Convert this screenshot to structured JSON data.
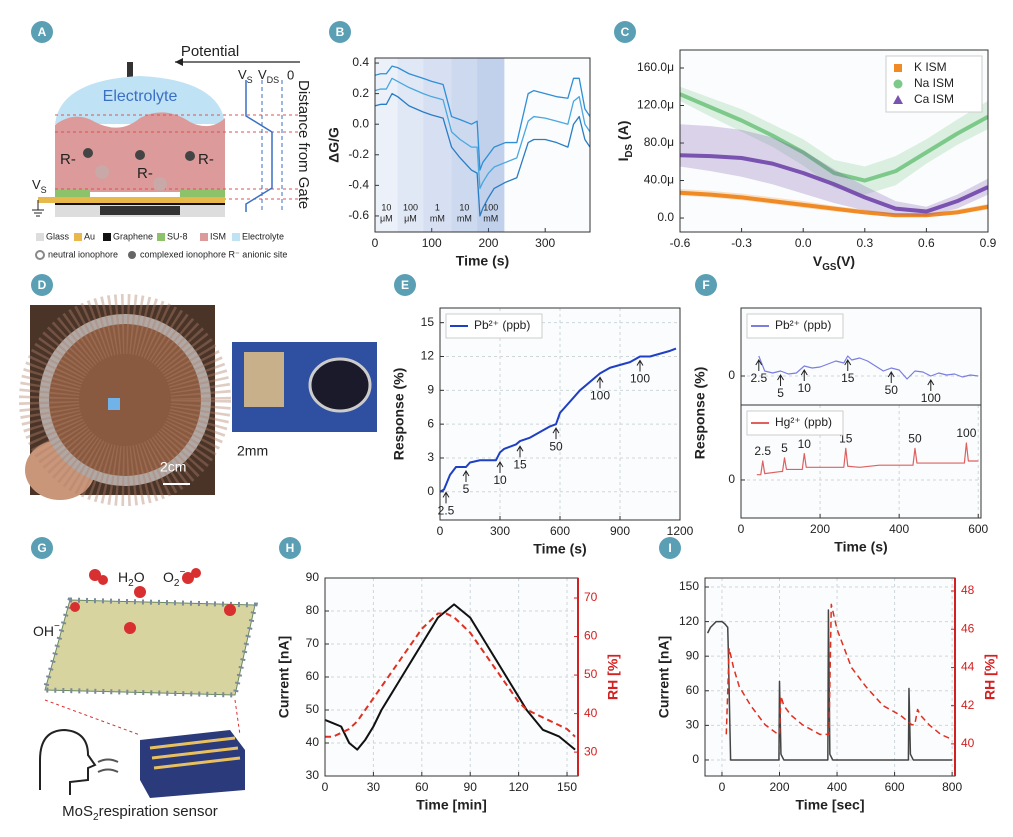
{
  "diagrams": {
    "A": {
      "panel": "A",
      "potential": "Potential",
      "vs": [
        "V",
        "S"
      ],
      "vds": [
        "V",
        "DS"
      ],
      "zero": "0",
      "distance": "Distance from Gate",
      "electrolyte": "Electrolyte",
      "anions": [
        "R-",
        "R-",
        "R-"
      ],
      "source": [
        "V",
        "S"
      ],
      "legend": [
        "Glass",
        "Au",
        "Graphene",
        "SU-8",
        "ISM",
        "Electrolyte"
      ],
      "neutral": "neutral ionophore",
      "complexed": "complexed ionophore R⁻ anionic site"
    },
    "D": {
      "panel": "D",
      "scale1": "2cm",
      "scale2": "2mm"
    },
    "G": {
      "panel": "G",
      "water": [
        "H",
        "2",
        "O"
      ],
      "superoxide": [
        "O",
        "2",
        "−"
      ],
      "hydroxide": [
        "OH",
        "−"
      ],
      "sensor": [
        "MoS",
        "2",
        "respiration sensor"
      ]
    }
  },
  "chart_data": [
    {
      "panel": "B",
      "type": "line",
      "xlabel": "Time (s)",
      "ylabel": "ΔG/G",
      "xlim": [
        0,
        379
      ],
      "xticks": [
        0,
        100,
        200,
        300
      ],
      "ylim": [
        -0.705,
        0.433
      ],
      "yticks": [
        -0.6,
        -0.4,
        -0.2,
        {
          "value": 0,
          "label": "0.0"
        },
        0.2,
        0.4
      ],
      "region_color": "#4a72c8",
      "regions": [
        {
          "x": [
            0,
            40
          ],
          "label": [
            "10",
            "μM"
          ]
        },
        {
          "x": [
            40,
            85
          ],
          "label": [
            "100",
            "μM"
          ]
        },
        {
          "x": [
            85,
            135
          ],
          "label": [
            "1",
            "mM"
          ]
        },
        {
          "x": [
            135,
            180
          ],
          "label": [
            "10",
            "mM"
          ]
        },
        {
          "x": [
            180,
            228
          ],
          "label": [
            "100",
            "mM"
          ]
        }
      ],
      "x": [
        0,
        10,
        20,
        30,
        40,
        60,
        85,
        100,
        120,
        135,
        150,
        170,
        180,
        185,
        190,
        200,
        210,
        230,
        250,
        270,
        280,
        300,
        320,
        340,
        350,
        360,
        370,
        379
      ],
      "series": [
        {
          "color": "#2f8fd6",
          "values": [
            0.32,
            0.33,
            0.33,
            0.38,
            0.37,
            0.33,
            0.3,
            0.28,
            0.26,
            0.05,
            0.03,
            0.0,
            0.02,
            -0.3,
            -0.25,
            -0.2,
            -0.15,
            -0.12,
            -0.12,
            0.2,
            0.22,
            0.2,
            0.18,
            0.17,
            0.3,
            0.3,
            0.1,
            0.05
          ]
        },
        {
          "color": "#4aa7e0",
          "values": [
            0.22,
            0.23,
            0.23,
            0.3,
            0.28,
            0.24,
            0.2,
            0.18,
            0.16,
            -0.05,
            -0.1,
            -0.15,
            -0.15,
            -0.42,
            -0.38,
            -0.32,
            -0.28,
            -0.25,
            -0.22,
            0.02,
            0.05,
            0.04,
            0.02,
            0.0,
            0.15,
            0.18,
            0.0,
            -0.05
          ]
        },
        {
          "color": "#2a7cc4",
          "values": [
            0.12,
            0.13,
            0.13,
            0.2,
            0.18,
            0.12,
            0.08,
            0.06,
            0.04,
            -0.15,
            -0.22,
            -0.3,
            -0.32,
            -0.6,
            -0.55,
            -0.48,
            -0.42,
            -0.38,
            -0.35,
            -0.12,
            -0.1,
            -0.1,
            -0.12,
            -0.15,
            0.0,
            0.05,
            -0.1,
            -0.15
          ]
        }
      ]
    },
    {
      "panel": "C",
      "type": "line",
      "xlabel": [
        "V",
        "GS",
        "(V)"
      ],
      "ylabel": [
        "I",
        "DS",
        " (A)"
      ],
      "xlim": [
        -0.6,
        0.9
      ],
      "xticks": [
        -0.6,
        -0.3,
        {
          "value": 0,
          "label": "0.0"
        },
        0.3,
        0.6,
        0.9
      ],
      "ylim": [
        -14.9,
        179.2
      ],
      "yticks": [
        {
          "value": 0,
          "label": "0.0"
        },
        {
          "value": 40,
          "label": "40.0μ"
        },
        {
          "value": 80,
          "label": "80.0μ"
        },
        {
          "value": 120,
          "label": "120.0μ"
        },
        {
          "value": 160,
          "label": "160.0μ"
        }
      ],
      "legend": "upper right",
      "x": [
        -0.6,
        -0.45,
        -0.3,
        -0.15,
        0,
        0.15,
        0.3,
        0.45,
        0.6,
        0.75,
        0.9
      ],
      "series": [
        {
          "name": "K ISM",
          "color": "#f08a24",
          "marker": "square",
          "values": [
            27,
            25,
            22,
            18,
            14,
            10,
            6,
            3,
            3,
            6,
            12
          ],
          "lower": [
            24,
            22,
            19,
            15,
            11,
            7,
            4,
            2,
            2,
            4,
            9
          ],
          "upper": [
            31,
            29,
            26,
            22,
            18,
            13,
            9,
            5,
            5,
            9,
            15
          ]
        },
        {
          "name": "Na ISM",
          "color": "#7cc98a",
          "marker": "circle",
          "values": [
            132,
            118,
            104,
            88,
            70,
            48,
            40,
            50,
            70,
            90,
            108
          ],
          "lower": [
            125,
            108,
            92,
            76,
            56,
            32,
            25,
            35,
            58,
            78,
            95
          ],
          "upper": [
            140,
            128,
            116,
            100,
            84,
            62,
            55,
            66,
            84,
            105,
            125
          ]
        },
        {
          "name": "Ca ISM",
          "color": "#7a52b0",
          "marker": "triangle",
          "values": [
            67,
            66,
            64,
            58,
            48,
            36,
            22,
            10,
            7,
            18,
            33
          ],
          "lower": [
            55,
            50,
            44,
            36,
            26,
            16,
            8,
            3,
            2,
            10,
            25
          ],
          "upper": [
            100,
            98,
            94,
            86,
            72,
            52,
            34,
            18,
            12,
            25,
            42
          ]
        }
      ]
    },
    {
      "panel": "E",
      "type": "line",
      "xlabel": "Time (s)",
      "ylabel": "Response (%)",
      "grid": true,
      "legend": "upper left",
      "xlim": [
        0,
        1200
      ],
      "xticks": [
        0,
        300,
        600,
        900,
        1200
      ],
      "ylim": [
        -2.5,
        16.3
      ],
      "yticks": [
        0,
        3,
        6,
        9,
        12,
        15
      ],
      "x": [
        0,
        20,
        50,
        80,
        130,
        150,
        200,
        280,
        300,
        320,
        380,
        400,
        450,
        550,
        580,
        600,
        700,
        780,
        800,
        850,
        950,
        1000,
        1050,
        1150,
        1180
      ],
      "series": [
        {
          "name": "Pb²⁺ (ppb)",
          "color": "#1f3fc4",
          "values": [
            0,
            0.2,
            1.5,
            2.2,
            2.2,
            2.6,
            2.8,
            2.8,
            3.5,
            3.8,
            4.2,
            4.5,
            4.8,
            5.8,
            6.0,
            7.0,
            9.0,
            10.2,
            10.5,
            11.0,
            11.5,
            12.0,
            12.0,
            12.5,
            12.7
          ]
        }
      ],
      "annotations": [
        {
          "text": "2.5",
          "x": 30,
          "y": 0.3
        },
        {
          "text": "5",
          "x": 130,
          "y": 2.2
        },
        {
          "text": "10",
          "x": 300,
          "y": 3.0
        },
        {
          "text": "15",
          "x": 400,
          "y": 4.4
        },
        {
          "text": "50",
          "x": 580,
          "y": 6.0
        },
        {
          "text": "100",
          "x": 800,
          "y": 10.5
        },
        {
          "text": "100",
          "x": 1000,
          "y": 12.0
        }
      ]
    },
    {
      "panel": "F",
      "type": "line",
      "ylabel": "Response (%)",
      "grid": true,
      "legend": "upper left",
      "xlim": [
        0,
        607
      ],
      "ylim": [
        -2.9,
        6.8
      ],
      "yticks": [
        0
      ],
      "x": [
        45,
        60,
        80,
        100,
        120,
        140,
        160,
        180,
        200,
        220,
        240,
        260,
        270,
        280,
        300,
        320,
        340,
        360,
        380,
        400,
        420,
        440,
        460,
        480,
        500,
        520,
        540,
        560,
        580,
        600
      ],
      "series": [
        {
          "name": "Pb²⁺ (ppb)",
          "color": "#7b7fe0",
          "values": [
            2.0,
            0.5,
            0.3,
            0.5,
            0.2,
            0.3,
            1.0,
            0.8,
            0.9,
            1.2,
            1.5,
            1.3,
            2.0,
            1.6,
            1.8,
            1.5,
            1.0,
            0.5,
            0.8,
            0.6,
            -0.3,
            0.5,
            0.4,
            0.0,
            0.3,
            0.1,
            0.2,
            -0.1,
            0.1,
            0.0
          ]
        }
      ],
      "annotations": [
        {
          "text": "2.5",
          "x": 45,
          "y": 2.0
        },
        {
          "text": "5",
          "x": 100,
          "y": 0.5
        },
        {
          "text": "10",
          "x": 160,
          "y": 1.0
        },
        {
          "text": "15",
          "x": 270,
          "y": 2.0
        },
        {
          "text": "50",
          "x": 380,
          "y": 0.8
        },
        {
          "text": "100",
          "x": 480,
          "y": 0.0
        }
      ]
    },
    {
      "type": "line",
      "xlabel": "Time (s)",
      "grid": true,
      "legend": "upper left",
      "xlim": [
        0,
        607
      ],
      "xticks": [
        0,
        200,
        400,
        600
      ],
      "ylim": [
        -3.6,
        7.1
      ],
      "yticks": [
        0
      ],
      "x": [
        40,
        50,
        55,
        60,
        100,
        105,
        110,
        115,
        150,
        155,
        160,
        165,
        250,
        260,
        265,
        270,
        300,
        350,
        400,
        430,
        435,
        440,
        445,
        500,
        560,
        565,
        570,
        575,
        600
      ],
      "series": [
        {
          "name": "Hg²⁺ (ppb)",
          "color": "#e06060",
          "values": [
            0.5,
            0.5,
            1.8,
            0.6,
            0.8,
            0.8,
            2.1,
            1.0,
            1.0,
            1.0,
            2.5,
            1.2,
            1.2,
            1.2,
            3.0,
            1.3,
            1.2,
            1.4,
            1.4,
            1.4,
            1.4,
            3.0,
            1.6,
            1.6,
            1.6,
            1.6,
            3.5,
            1.8,
            1.8
          ]
        }
      ],
      "annotations": [
        {
          "text": "2.5",
          "x": 55,
          "y": 1.8
        },
        {
          "text": "5",
          "x": 110,
          "y": 2.1
        },
        {
          "text": "10",
          "x": 160,
          "y": 2.5
        },
        {
          "text": "15",
          "x": 265,
          "y": 3.0
        },
        {
          "text": "50",
          "x": 440,
          "y": 3.0
        },
        {
          "text": "100",
          "x": 570,
          "y": 3.5
        }
      ]
    },
    {
      "panel": "H",
      "type": "line",
      "xlabel": "Time [min]",
      "ylabel": "Current [nA]",
      "y2label": "RH [%]",
      "y2_color": "#d32020",
      "grid": true,
      "xlim": [
        0,
        156.8
      ],
      "xticks": [
        0,
        30,
        60,
        90,
        120,
        150
      ],
      "ylim": [
        30,
        90
      ],
      "yticks": [
        30,
        40,
        50,
        60,
        70,
        80,
        90
      ],
      "y2lim": [
        23.8,
        75.2
      ],
      "y2ticks": [
        30,
        40,
        50,
        60,
        70
      ],
      "x": [
        0,
        5,
        10,
        15,
        20,
        25,
        30,
        35,
        40,
        45,
        50,
        55,
        60,
        65,
        70,
        75,
        80,
        85,
        90,
        95,
        100,
        105,
        110,
        115,
        120,
        125,
        130,
        135,
        140,
        145,
        150,
        155
      ],
      "series": [
        {
          "color": "#111111",
          "values": [
            47,
            46,
            45,
            40,
            38,
            41,
            45,
            50,
            54,
            58,
            62,
            66,
            70,
            74,
            78,
            80,
            82,
            80,
            78,
            74,
            70,
            66,
            62,
            58,
            54,
            50,
            47,
            44,
            43,
            42,
            40,
            38
          ]
        },
        {
          "color": "#e03020",
          "axis": "y2",
          "dash": true,
          "values": [
            34,
            34,
            35,
            36,
            38,
            41,
            44,
            47,
            50,
            53,
            56,
            59,
            62,
            64,
            66,
            66,
            65,
            63,
            61,
            58,
            55,
            52,
            49,
            46,
            43,
            41,
            40,
            39,
            38,
            37,
            36,
            34
          ]
        }
      ]
    },
    {
      "panel": "I",
      "type": "line",
      "xlabel": "Time [sec]",
      "ylabel": "Current [nA]",
      "y2label": "RH [%]",
      "y2_color": "#d32020",
      "grid": true,
      "xlim": [
        -59,
        810
      ],
      "xticks": [
        0,
        200,
        400,
        600,
        800
      ],
      "ylim": [
        -13.9,
        157.8
      ],
      "yticks": [
        0,
        30,
        60,
        90,
        120,
        150
      ],
      "y2lim": [
        38.32,
        48.68
      ],
      "y2ticks": [
        40,
        42,
        44,
        46,
        48
      ],
      "series": [
        {
          "color": "#444444",
          "x": [
            -50,
            -40,
            -20,
            0,
            10,
            20,
            22,
            30,
            60,
            190,
            198,
            200,
            205,
            215,
            360,
            368,
            370,
            375,
            385,
            640,
            648,
            650,
            655,
            665,
            800
          ],
          "values": [
            110,
            115,
            120,
            120,
            118,
            115,
            95,
            0,
            0,
            0,
            0,
            68,
            5,
            0,
            0,
            0,
            130,
            5,
            0,
            0,
            0,
            62,
            5,
            0,
            0
          ]
        },
        {
          "color": "#e03020",
          "axis": "y2",
          "dash": true,
          "x": [
            15,
            25,
            40,
            60,
            100,
            150,
            195,
            200,
            205,
            215,
            240,
            280,
            340,
            365,
            372,
            380,
            400,
            450,
            500,
            560,
            620,
            660,
            670,
            680,
            690,
            720,
            760,
            790,
            800
          ],
          "values": [
            40.5,
            45,
            44,
            43,
            42,
            41,
            40.5,
            40.5,
            42.5,
            42,
            41.5,
            41,
            40.5,
            40.5,
            40.5,
            47.3,
            46,
            44,
            43,
            42,
            41.5,
            41,
            41,
            41.8,
            41.5,
            41,
            40.5,
            40.3,
            40.2
          ]
        }
      ]
    }
  ]
}
